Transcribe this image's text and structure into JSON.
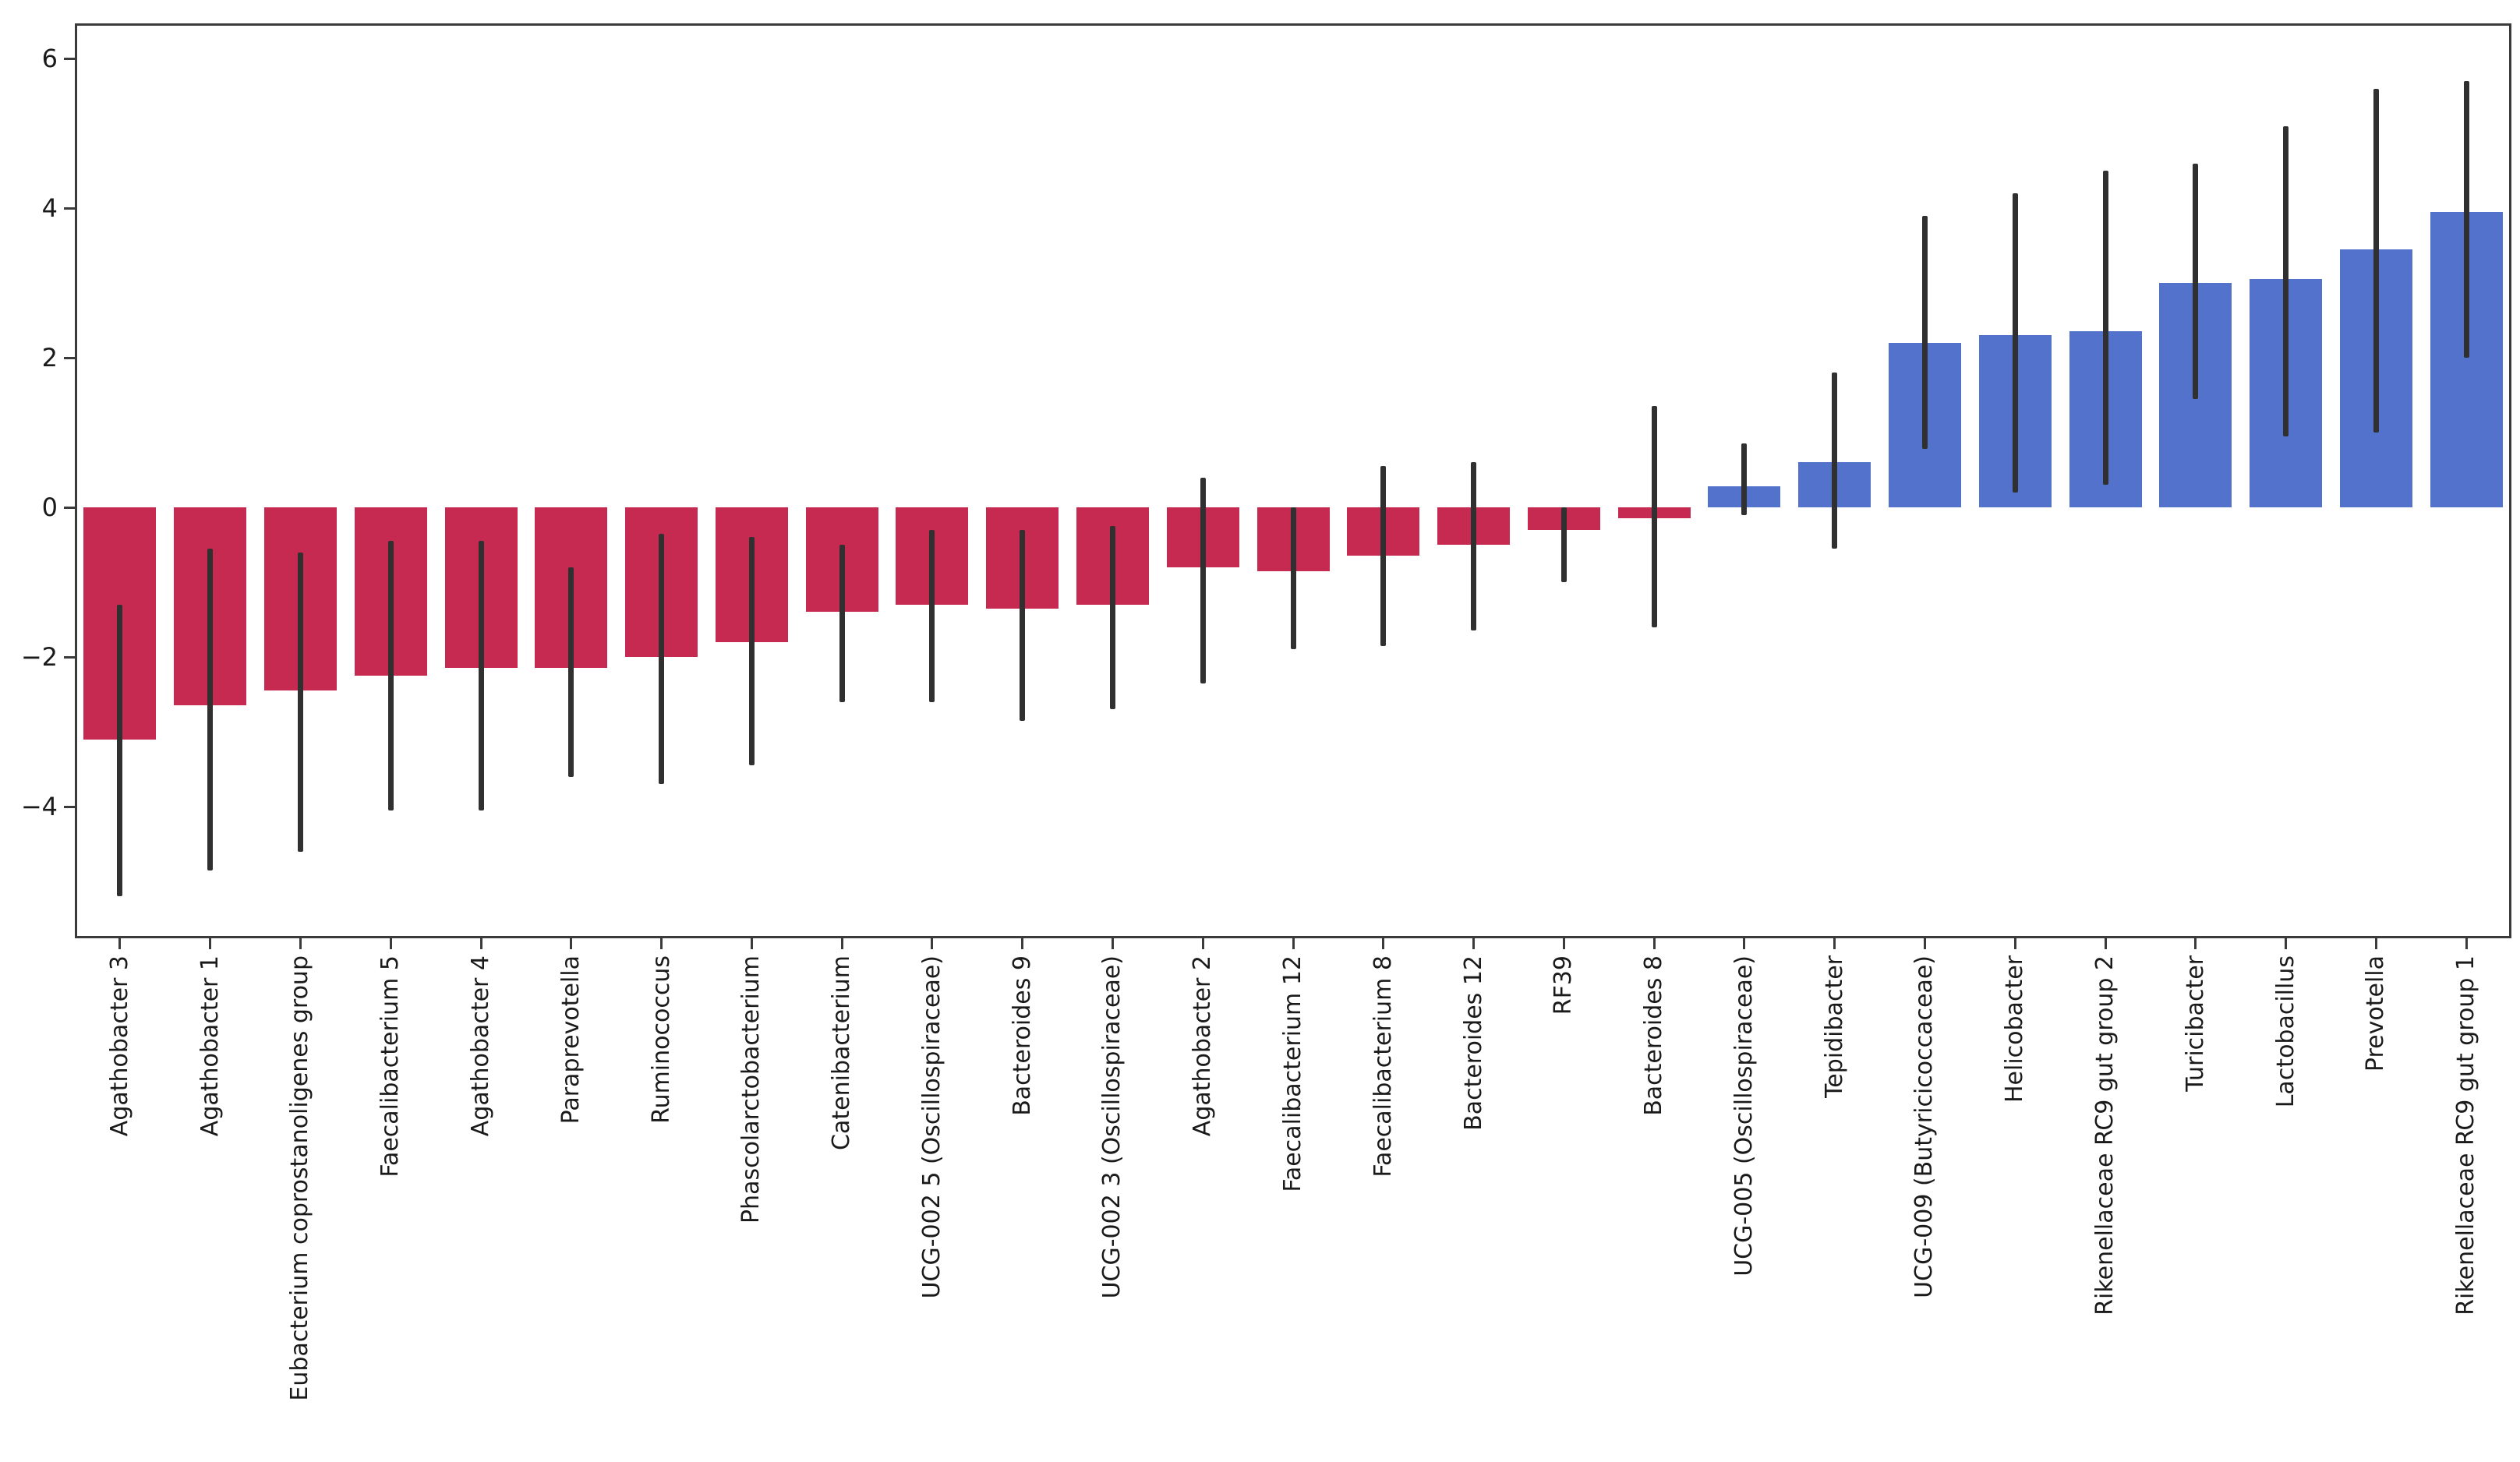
{
  "chart_data": {
    "type": "bar",
    "title": "",
    "xlabel": "",
    "ylabel": "",
    "legend": "none",
    "grid": false,
    "ylim": [
      -5.76,
      6.47
    ],
    "yticks": [
      6,
      4,
      2,
      0,
      -2,
      -4
    ],
    "categories": [
      "Agathobacter 3",
      "Agathobacter 1",
      "Eubacterium coprostanoligenes group",
      "Faecalibacterium 5",
      "Agathobacter 4",
      "Paraprevotella",
      "Ruminococcus",
      "Phascolarctobacterium",
      "Catenibacterium",
      "UCG-002 5 (Oscillospiraceae)",
      "Bacteroides 9",
      "UCG-002 3 (Oscillospiraceae)",
      "Agathobacter 2",
      "Faecalibacterium 12",
      "Faecalibacterium 8",
      "Bacteroides 12",
      "RF39",
      "Bacteroides 8",
      "UCG-005 (Oscillospiraceae)",
      "Tepidibacter",
      "UCG-009 (Butyricicoccaceae)",
      "Helicobacter",
      "Rikenellaceae RC9 gut group 2",
      "Turicibacter",
      "Lactobacillus",
      "Prevotella",
      "Rikenellaceae RC9 gut group 1"
    ],
    "values": [
      -3.1,
      -2.65,
      -2.45,
      -2.25,
      -2.15,
      -2.15,
      -2.0,
      -1.8,
      -1.4,
      -1.3,
      -1.35,
      -1.3,
      -0.8,
      -0.85,
      -0.65,
      -0.5,
      -0.3,
      -0.15,
      0.28,
      0.6,
      2.2,
      2.3,
      2.35,
      3.0,
      3.05,
      3.45,
      3.95
    ],
    "error_high": [
      -1.3,
      -0.55,
      -0.6,
      -0.45,
      -0.45,
      -0.8,
      -0.35,
      -0.4,
      -0.5,
      -0.3,
      -0.3,
      -0.25,
      0.4,
      0.0,
      0.55,
      0.6,
      0.0,
      1.35,
      0.85,
      1.8,
      3.9,
      4.2,
      4.5,
      4.6,
      5.1,
      5.6,
      5.7
    ],
    "error_low": [
      -5.2,
      -4.85,
      -4.6,
      -4.05,
      -4.05,
      -3.6,
      -3.7,
      -3.45,
      -2.6,
      -2.6,
      -2.85,
      -2.7,
      -2.35,
      -1.9,
      -1.85,
      -1.65,
      -1.0,
      -1.6,
      -0.1,
      -0.55,
      0.78,
      0.2,
      0.3,
      1.45,
      0.95,
      1.0,
      2.0
    ]
  },
  "colors": {
    "negative_bar": "#C62A51",
    "positive_bar": "#5272CC",
    "error_bar": "#303030",
    "spine": "#3b3b3b",
    "tick_label": "#1a1a1a",
    "background": "#ffffff"
  }
}
